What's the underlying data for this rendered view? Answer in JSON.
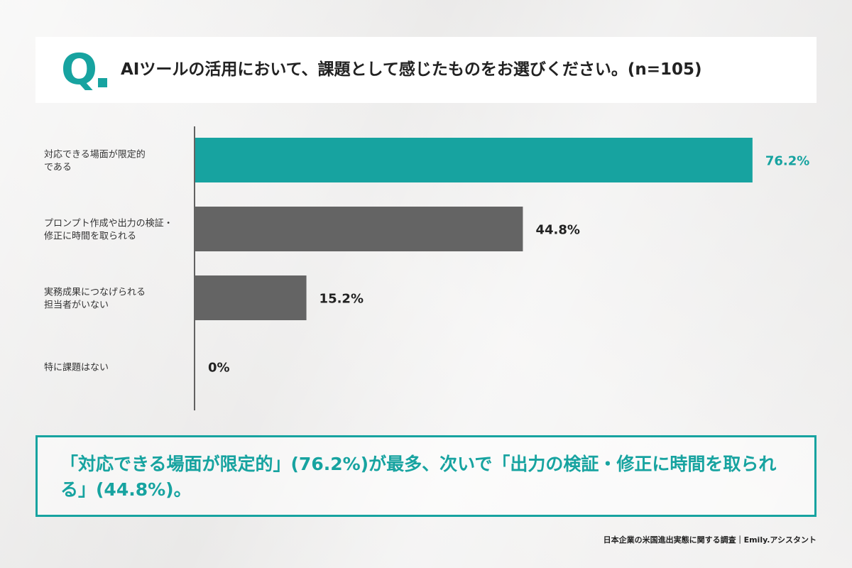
{
  "question": {
    "mark": "Q",
    "text": "AIツールの活用において、課題として感じたものをお選びください。(n=105)"
  },
  "chart_data": {
    "type": "bar",
    "orientation": "horizontal",
    "categories": [
      [
        "対応できる場面が限定的",
        "である"
      ],
      [
        "プロンプト作成や出力の検証・",
        "修正に時間を取られる"
      ],
      [
        "実務成果につなげられる",
        "担当者がいない"
      ],
      [
        "特に課題はない"
      ]
    ],
    "values": [
      76.2,
      44.8,
      15.2,
      0
    ],
    "value_labels": [
      "76.2%",
      "44.8%",
      "15.2%",
      "0%"
    ],
    "xlim": [
      0,
      100
    ],
    "unit": "%",
    "highlight_index": 0,
    "colors": {
      "highlight": "#17a3a0",
      "default": "#646464",
      "label_default": "#222222"
    },
    "grid": false,
    "legend": "none"
  },
  "summary": {
    "text": "「対応できる場面が限定的」(76.2%)が最多、次いで「出力の検証・修正に時間を取られる」(44.8%)。"
  },
  "footer": {
    "text": "日本企業の米国進出実態に関する調査｜Emily.アシスタント"
  }
}
